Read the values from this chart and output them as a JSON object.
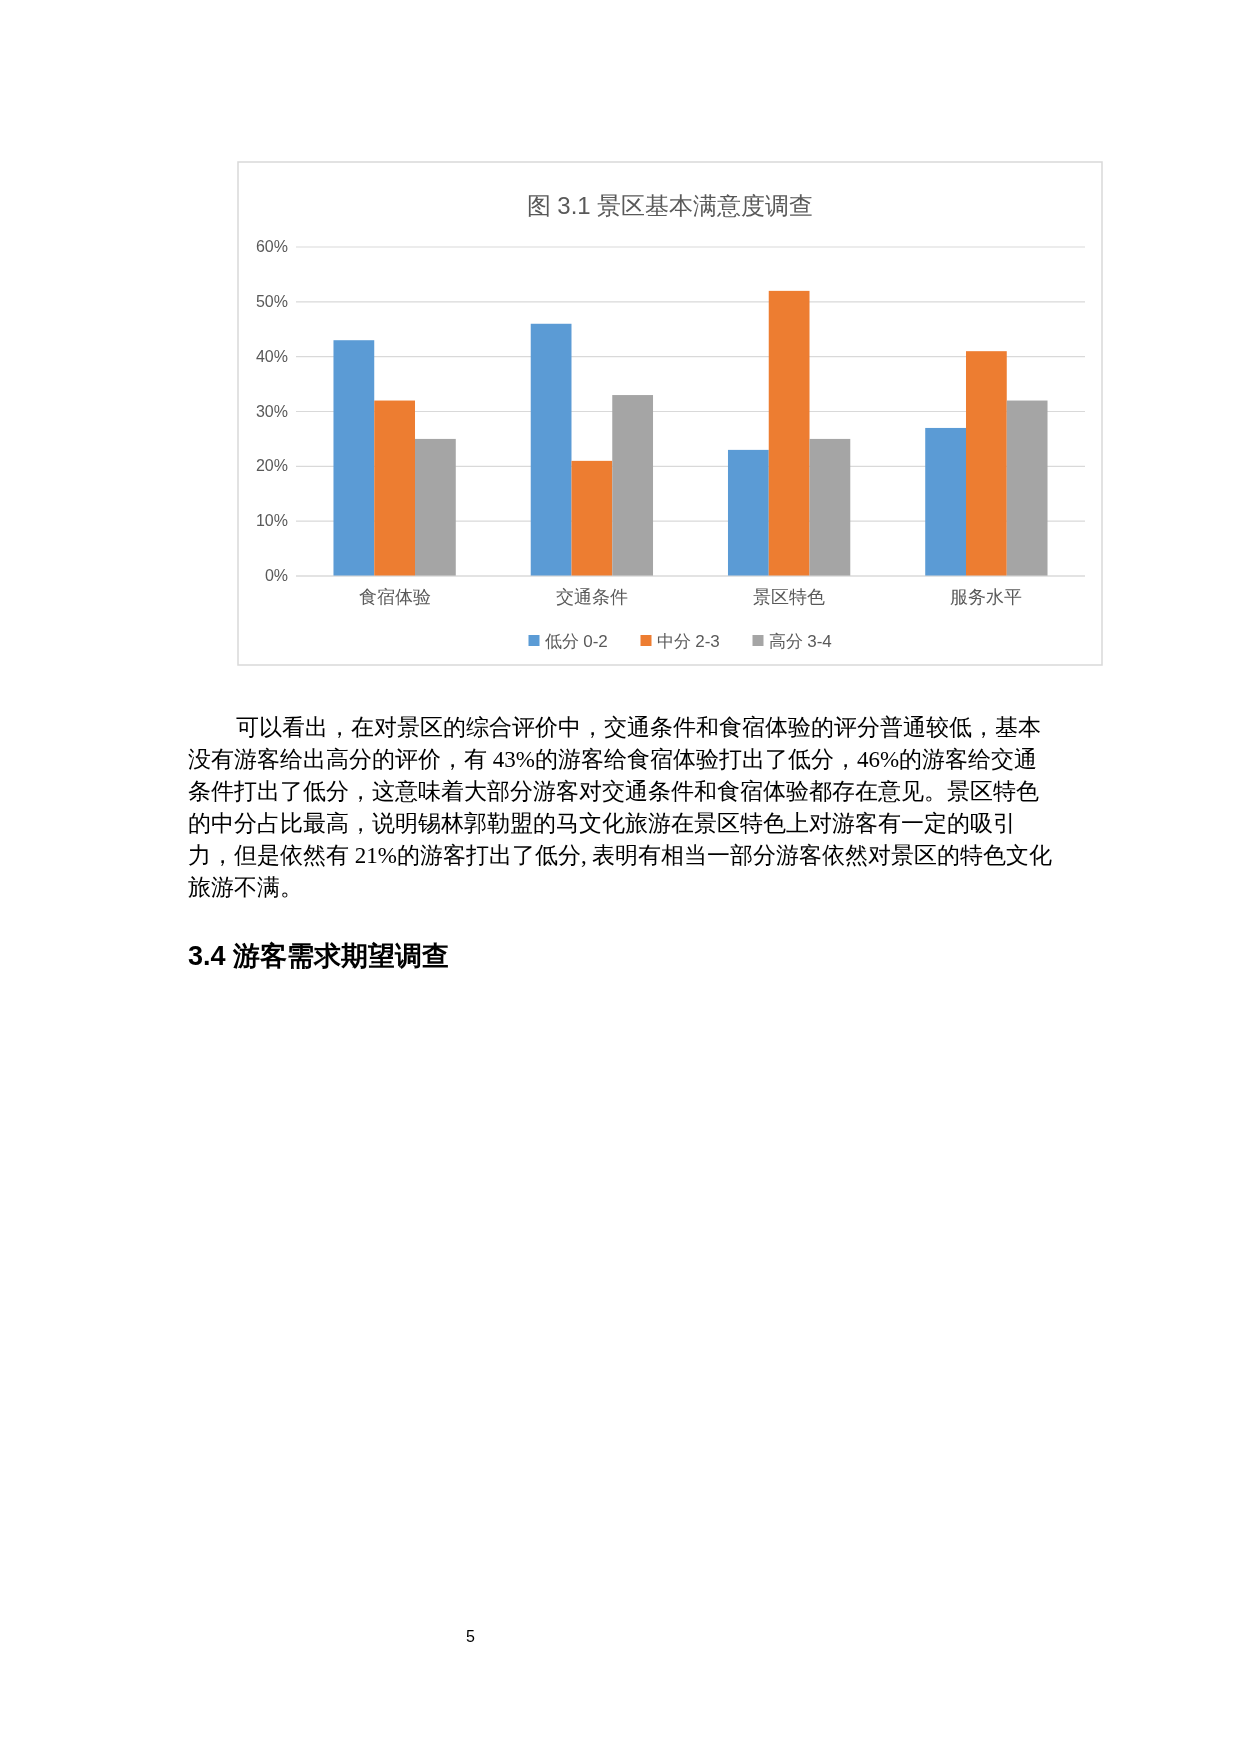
{
  "chart_data": {
    "type": "bar",
    "title": "图 3.1 景区基本满意度调查",
    "categories": [
      "食宿体验",
      "交通条件",
      "景区特色",
      "服务水平"
    ],
    "series": [
      {
        "name": "低分 0-2",
        "color": "#5b9bd5",
        "values": [
          43,
          46,
          23,
          27
        ]
      },
      {
        "name": "中分 2-3",
        "color": "#ed7d31",
        "values": [
          32,
          21,
          52,
          41
        ]
      },
      {
        "name": "高分 3-4",
        "color": "#a5a5a5",
        "values": [
          25,
          33,
          25,
          32
        ]
      }
    ],
    "ylim": [
      0,
      60
    ],
    "yticks": [
      {
        "value": 0,
        "label": "0%"
      },
      {
        "value": 10,
        "label": "10%"
      },
      {
        "value": 20,
        "label": "20%"
      },
      {
        "value": 30,
        "label": "30%"
      },
      {
        "value": 40,
        "label": "40%"
      },
      {
        "value": 50,
        "label": "50%"
      },
      {
        "value": 60,
        "label": "60%"
      }
    ],
    "grid": "y",
    "legend": "bottom",
    "annotations": [
      "可以看出，在对景区的综合评价中，交通条件和食宿体验的评分普通较低，基本没有游客给出高分的评价，有 43%的游客给食宿体验打出了低分，46%的游客给交通条件打出了低分，这意味着大部分游客对交通条件和食宿体验都存在意见。景区特色的中分占比最高，说明锡林郭勒盟的马文化旅游在景区特色上对游客有一定的吸引力，但是依然有 21%的游客打出了低分, 表明有相当一部分游客依然对景区的特色文化旅游不满。",
      "3.4 游客需求期望调查",
      "5"
    ]
  }
}
